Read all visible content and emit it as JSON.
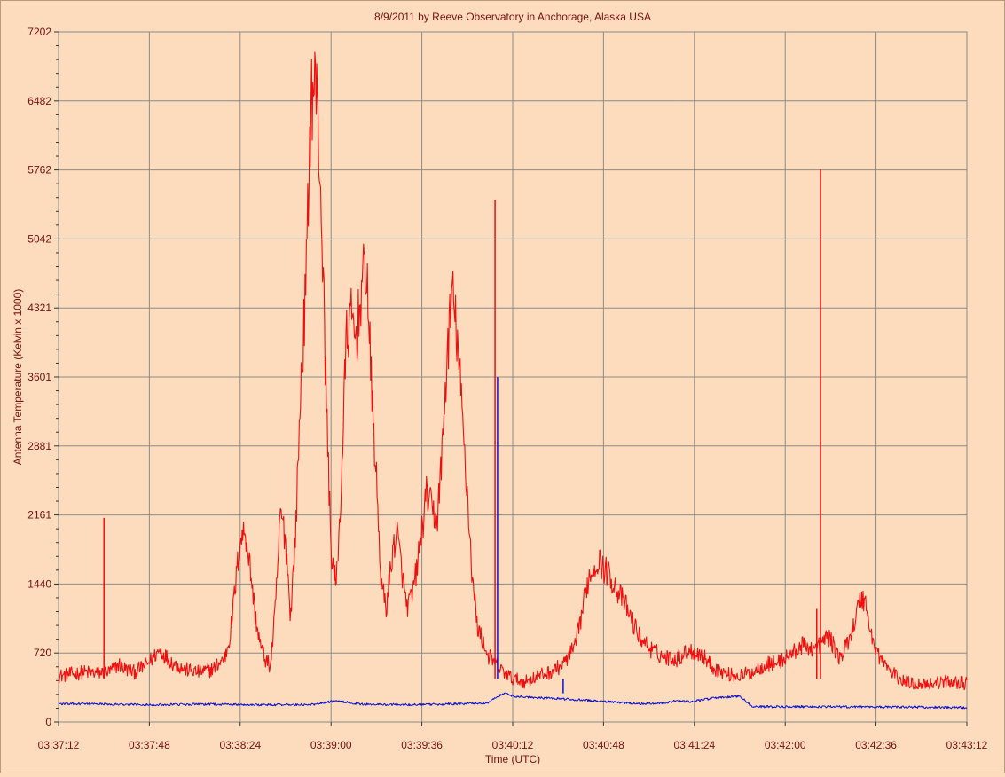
{
  "chart_data": {
    "type": "line",
    "title": "8/9/2011  by  Reeve Observatory  in  Anchorage, Alaska  USA",
    "xlabel": "Time (UTC)",
    "ylabel": "Antenna Temperature (Kelvin x 1000)",
    "x_ticks": [
      "03:37:12",
      "03:37:48",
      "03:38:24",
      "03:39:00",
      "03:39:36",
      "03:40:12",
      "03:40:48",
      "03:41:24",
      "03:42:00",
      "03:42:36",
      "03:43:12"
    ],
    "y_ticks": [
      "0",
      "720",
      "1440",
      "2161",
      "2881",
      "3601",
      "4321",
      "5042",
      "5762",
      "6482",
      "7202"
    ],
    "xlim_seconds": [
      0,
      360
    ],
    "ylim": [
      0,
      7202
    ],
    "grid": true,
    "series": [
      {
        "color": "#ee1010",
        "x": [
          0,
          5,
          10,
          15,
          20,
          22,
          24,
          26,
          30,
          35,
          40,
          45,
          50,
          55,
          60,
          62,
          63,
          64,
          66,
          68,
          70,
          72,
          74,
          76,
          78,
          80,
          82,
          84,
          86,
          88,
          90,
          92,
          94,
          96,
          98,
          100,
          102,
          104,
          106,
          108,
          110,
          112,
          114,
          116,
          118,
          120,
          122,
          124,
          126,
          128,
          130,
          132,
          134,
          136,
          138,
          140,
          142,
          144,
          146,
          148,
          150,
          152,
          154,
          156,
          158,
          160,
          162,
          164,
          166,
          168,
          170,
          175,
          180,
          185,
          190,
          195,
          200,
          205,
          210,
          212,
          214,
          216,
          218,
          220,
          225,
          230,
          235,
          240,
          245,
          250,
          255,
          260,
          265,
          270,
          275,
          280,
          285,
          290,
          295,
          300,
          305,
          310,
          315,
          318,
          320,
          322,
          325,
          330,
          335,
          340,
          345,
          350,
          355,
          360
        ],
        "values": [
          480,
          500,
          520,
          510,
          520,
          560,
          600,
          560,
          520,
          600,
          750,
          620,
          550,
          520,
          540,
          570,
          600,
          620,
          680,
          900,
          1400,
          1900,
          2000,
          1600,
          1100,
          800,
          650,
          580,
          1200,
          2200,
          1900,
          1100,
          2000,
          3500,
          4500,
          6500,
          6700,
          5500,
          3500,
          1800,
          1400,
          2400,
          4000,
          4200,
          4000,
          4500,
          4800,
          3500,
          2500,
          1400,
          1200,
          1700,
          2000,
          1600,
          1200,
          1300,
          1600,
          2000,
          2400,
          2200,
          2100,
          2800,
          3800,
          4500,
          4000,
          3200,
          2400,
          1500,
          1000,
          850,
          700,
          550,
          450,
          420,
          480,
          520,
          600,
          800,
          1500,
          1600,
          1700,
          1600,
          1550,
          1450,
          1200,
          900,
          750,
          680,
          660,
          750,
          700,
          560,
          500,
          480,
          520,
          600,
          620,
          700,
          800,
          760,
          900,
          650,
          1000,
          1300,
          1250,
          900,
          700,
          520,
          420,
          400,
          400,
          420,
          420,
          400
        ]
      },
      {
        "color": "#0c10d8",
        "x": [
          0,
          20,
          40,
          60,
          80,
          100,
          110,
          120,
          140,
          160,
          170,
          175,
          178,
          180,
          200,
          230,
          240,
          245,
          250,
          260,
          270,
          275,
          280,
          300,
          340,
          360
        ],
        "values": [
          190,
          185,
          180,
          185,
          180,
          180,
          220,
          185,
          180,
          190,
          200,
          280,
          300,
          270,
          240,
          190,
          200,
          220,
          210,
          250,
          270,
          160,
          160,
          160,
          155,
          150
        ]
      }
    ],
    "spikes": [
      {
        "x": 18,
        "y": 2130,
        "color": "#ee1010"
      },
      {
        "x": 173,
        "y": 5450,
        "color": "#ee1010"
      },
      {
        "x": 174,
        "y": 3600,
        "color": "#0c10d8"
      },
      {
        "x": 302,
        "y": 5770,
        "color": "#ee1010"
      },
      {
        "x": 300.5,
        "y": 1180,
        "color": "#ee1010"
      },
      {
        "x": 200,
        "y": 300,
        "color": "#0c10d8"
      }
    ]
  }
}
